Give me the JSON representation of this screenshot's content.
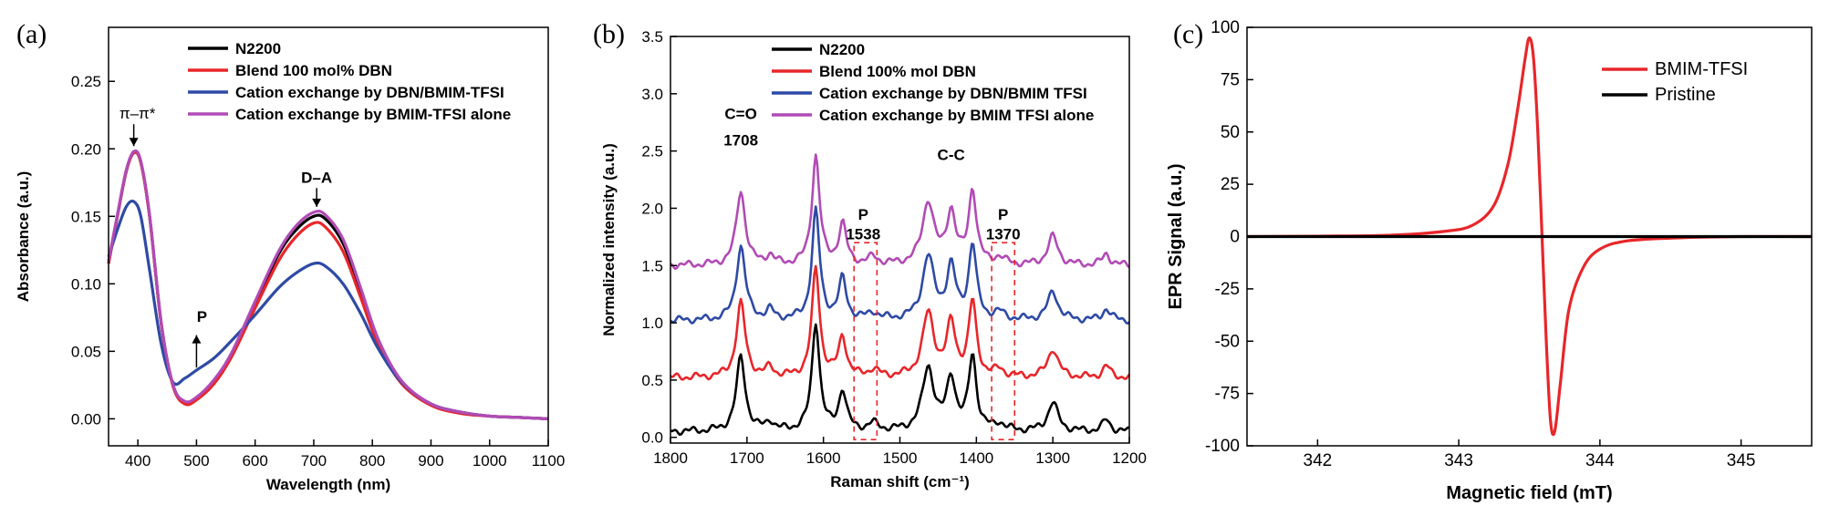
{
  "chart_data": [
    {
      "panel": "(a)",
      "type": "line",
      "xlabel": "Wavelength (nm)",
      "ylabel": "Absorbance (a.u.)",
      "xlim": [
        350,
        1100
      ],
      "ylim": [
        -0.02,
        0.29
      ],
      "xticks": [
        400,
        500,
        600,
        700,
        800,
        900,
        1000,
        1100
      ],
      "yticks": [
        0.0,
        0.05,
        0.1,
        0.15,
        0.2,
        0.25
      ],
      "ytick_labels": [
        "0.00",
        "0.05",
        "0.10",
        "0.15",
        "0.20",
        "0.25"
      ],
      "legend_position": "top-left",
      "annotations": [
        {
          "text": "π–π*",
          "x": 393,
          "y": 0.225
        },
        {
          "text": "D–A",
          "x": 705,
          "y": 0.175
        },
        {
          "text": "P",
          "x": 500,
          "y": 0.072
        }
      ],
      "x": [
        350,
        365,
        380,
        393,
        405,
        420,
        440,
        460,
        480,
        500,
        530,
        560,
        600,
        640,
        670,
        700,
        720,
        750,
        780,
        810,
        850,
        900,
        950,
        1000,
        1050,
        1100
      ],
      "series": [
        {
          "name": "N2200",
          "color": "#000000",
          "values": [
            0.115,
            0.15,
            0.183,
            0.197,
            0.19,
            0.15,
            0.07,
            0.025,
            0.012,
            0.015,
            0.028,
            0.048,
            0.085,
            0.122,
            0.14,
            0.15,
            0.148,
            0.13,
            0.095,
            0.058,
            0.027,
            0.011,
            0.005,
            0.002,
            0.001,
            0.0
          ]
        },
        {
          "name": "Blend 100 mol% DBN",
          "color": "#e8262a",
          "values": [
            0.115,
            0.15,
            0.183,
            0.197,
            0.19,
            0.15,
            0.07,
            0.024,
            0.011,
            0.014,
            0.026,
            0.046,
            0.082,
            0.117,
            0.135,
            0.145,
            0.142,
            0.124,
            0.09,
            0.055,
            0.026,
            0.01,
            0.004,
            0.002,
            0.001,
            0.0
          ]
        },
        {
          "name": "Cation exchange by DBN/BMIM-TFSI",
          "color": "#2e4aa5",
          "values": [
            0.12,
            0.14,
            0.157,
            0.161,
            0.15,
            0.11,
            0.055,
            0.027,
            0.03,
            0.036,
            0.045,
            0.058,
            0.077,
            0.097,
            0.108,
            0.115,
            0.113,
            0.1,
            0.078,
            0.052,
            0.027,
            0.011,
            0.005,
            0.002,
            0.001,
            0.0
          ]
        },
        {
          "name": "Cation exchange by BMIM-TFSI alone",
          "color": "#b14bb5",
          "values": [
            0.117,
            0.151,
            0.184,
            0.198,
            0.191,
            0.151,
            0.071,
            0.025,
            0.013,
            0.016,
            0.029,
            0.049,
            0.087,
            0.124,
            0.143,
            0.153,
            0.151,
            0.133,
            0.097,
            0.059,
            0.028,
            0.011,
            0.005,
            0.002,
            0.001,
            0.0
          ]
        }
      ]
    },
    {
      "panel": "(b)",
      "type": "line",
      "xlabel": "Raman shift (cm⁻¹)",
      "ylabel": "Normalized intensity (a.u.)",
      "xlim": [
        1800,
        1200
      ],
      "ylim": [
        -0.05,
        3.5
      ],
      "xticks": [
        1800,
        1700,
        1600,
        1500,
        1400,
        1300,
        1200
      ],
      "yticks": [
        0.0,
        0.5,
        1.0,
        1.5,
        2.0,
        2.5,
        3.0,
        3.5
      ],
      "ytick_labels": [
        "0.0",
        "0.5",
        "1.0",
        "1.5",
        "2.0",
        "2.5",
        "3.0",
        "3.5"
      ],
      "legend_position": "top",
      "peaks": [
        {
          "pos": 1708,
          "width": 7,
          "height": 0.65
        },
        {
          "pos": 1670,
          "width": 6,
          "height": 0.08
        },
        {
          "pos": 1610,
          "width": 6,
          "height": 0.95
        },
        {
          "pos": 1575,
          "width": 6,
          "height": 0.35
        },
        {
          "pos": 1535,
          "width": 8,
          "height": 0.06
        },
        {
          "pos": 1463,
          "width": 9,
          "height": 0.55
        },
        {
          "pos": 1433,
          "width": 7,
          "height": 0.45
        },
        {
          "pos": 1405,
          "width": 6,
          "height": 0.65
        },
        {
          "pos": 1370,
          "width": 8,
          "height": 0.06
        },
        {
          "pos": 1300,
          "width": 8,
          "height": 0.25
        },
        {
          "pos": 1230,
          "width": 6,
          "height": 0.1
        }
      ],
      "series": [
        {
          "name": "N2200",
          "color": "#000000",
          "offset": 0.05
        },
        {
          "name": "Blend 100% mol DBN",
          "color": "#e8262a",
          "offset": 0.52
        },
        {
          "name": "Cation exchange by DBN/BMIM TFSI",
          "color": "#2e4aa5",
          "offset": 1.02
        },
        {
          "name": "Cation exchange by BMIM TFSI alone",
          "color": "#b14bb5",
          "offset": 1.5
        }
      ],
      "annotations": [
        {
          "text": "C=O",
          "x": 1708,
          "y": 2.78
        },
        {
          "text": "1708",
          "x": 1708,
          "y": 2.55
        },
        {
          "text": "P",
          "x": 1548,
          "y": 1.9
        },
        {
          "text": "1538",
          "x": 1548,
          "y": 1.73
        },
        {
          "text": "C-C",
          "x": 1433,
          "y": 2.42
        },
        {
          "text": "P",
          "x": 1365,
          "y": 1.9
        },
        {
          "text": "1370",
          "x": 1365,
          "y": 1.73
        }
      ],
      "dashed_boxes": [
        {
          "x": [
            1560,
            1530
          ],
          "y": [
            -0.02,
            1.7
          ]
        },
        {
          "x": [
            1380,
            1350
          ],
          "y": [
            -0.02,
            1.7
          ]
        }
      ]
    },
    {
      "panel": "(c)",
      "type": "line",
      "xlabel": "Magnetic field (mT)",
      "ylabel": "EPR Signal (a.u.)",
      "xlim": [
        341.5,
        345.5
      ],
      "ylim": [
        -100,
        100
      ],
      "xticks": [
        342,
        343,
        344,
        345
      ],
      "yticks": [
        -100,
        -75,
        -50,
        -25,
        0,
        25,
        50,
        75,
        100
      ],
      "ytick_labels": [
        "-100",
        "-75",
        "-50",
        "-25",
        "0",
        "25",
        "50",
        "75",
        "100"
      ],
      "legend_position": "top-right",
      "x": [
        341.5,
        342.0,
        342.5,
        342.9,
        343.1,
        343.25,
        343.35,
        343.42,
        343.47,
        343.5,
        343.53,
        343.56,
        343.59,
        343.62,
        343.65,
        343.68,
        343.72,
        343.78,
        343.88,
        344.0,
        344.2,
        344.6,
        345.0,
        345.5
      ],
      "series": [
        {
          "name": "BMIM-TFSI",
          "color": "#e8262a",
          "values": [
            0,
            0.2,
            0.6,
            2.5,
            5.5,
            15,
            35,
            62,
            85,
            95,
            85,
            50,
            0,
            -50,
            -88,
            -93,
            -70,
            -35,
            -15,
            -6,
            -2,
            -0.5,
            0,
            0
          ]
        },
        {
          "name": "Pristine",
          "color": "#000000",
          "values": [
            0,
            0,
            0,
            0,
            0,
            0,
            0,
            0,
            0,
            0,
            0,
            0,
            0,
            0,
            0,
            0,
            0,
            0,
            0,
            0,
            0,
            0,
            0,
            0
          ]
        }
      ]
    }
  ]
}
